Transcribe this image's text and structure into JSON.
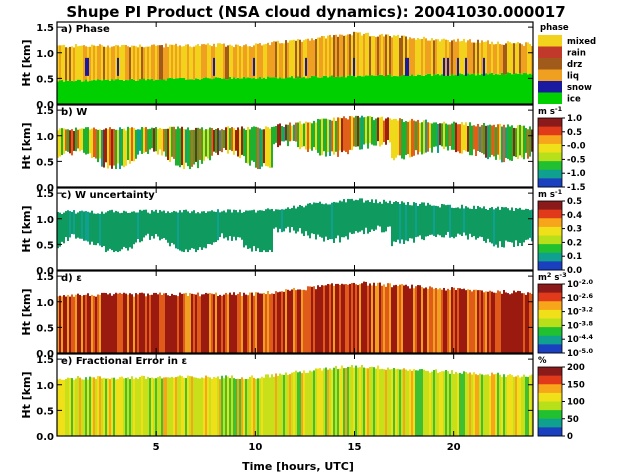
{
  "title": "Shupe PI Product (NSA cloud dynamics): 20041030.000017",
  "chart_data": [
    {
      "type": "heatmap",
      "panel_label": "a) Phase",
      "ylabel": "Ht [km]",
      "ylim": [
        0.0,
        1.6
      ],
      "yticks": [
        "1.5",
        "1.0",
        "0.5",
        "0.0"
      ],
      "xlim": [
        0,
        24
      ],
      "colorbar": {
        "title": "phase",
        "labels": [
          "mixed",
          "rain",
          "drz",
          "liq",
          "snow",
          "ice"
        ],
        "colors": [
          "#f2d21a",
          "#c0392b",
          "#a05a1a",
          "#f0a020",
          "#1a1aa0",
          "#00d000"
        ]
      }
    },
    {
      "type": "heatmap",
      "panel_label": "b) W",
      "ylabel": "Ht [km]",
      "ylim": [
        0.0,
        1.6
      ],
      "yticks": [
        "1.5",
        "1.0",
        "0.5",
        "0.0"
      ],
      "xlim": [
        0,
        24
      ],
      "colorbar": {
        "unit": "m s",
        "unit_sup": "-1",
        "labels": [
          "1.0",
          "0.5",
          "-0.0",
          "-0.5",
          "-1.0",
          "-1.5"
        ],
        "colors": [
          "#8b1a1a",
          "#e03a1a",
          "#f7a51a",
          "#f0e01a",
          "#b8e01a",
          "#20c030",
          "#10a090",
          "#1a40c0"
        ]
      }
    },
    {
      "type": "heatmap",
      "panel_label": "c) W uncertainty",
      "ylabel": "Ht [km]",
      "ylim": [
        0.0,
        1.6
      ],
      "yticks": [
        "1.5",
        "1.0",
        "0.5",
        "0.0"
      ],
      "xlim": [
        0,
        24
      ],
      "colorbar": {
        "unit": "m s",
        "unit_sup": "-1",
        "labels": [
          "0.5",
          "0.4",
          "0.3",
          "0.2",
          "0.1",
          "0.0"
        ],
        "colors": [
          "#8b1a1a",
          "#e03a1a",
          "#f7a51a",
          "#f0e01a",
          "#b8e01a",
          "#20c030",
          "#10a090",
          "#1a40c0"
        ]
      }
    },
    {
      "type": "heatmap",
      "panel_label": "d) ε",
      "ylabel": "Ht [km]",
      "ylim": [
        0.0,
        1.6
      ],
      "yticks": [
        "1.5",
        "1.0",
        "0.5",
        "0.0"
      ],
      "xlim": [
        0,
        24
      ],
      "colorbar": {
        "unit": "m",
        "unit_sup": "2",
        "unit2": " s",
        "unit2_sup": "-3",
        "labels": [
          "10",
          "10",
          "10",
          "10",
          "10",
          "10"
        ],
        "label_sups": [
          "-2.0",
          "-2.6",
          "-3.2",
          "-3.8",
          "-4.4",
          "-5.0"
        ],
        "colors": [
          "#8b1a1a",
          "#e03a1a",
          "#f7a51a",
          "#f0e01a",
          "#b8e01a",
          "#20c030",
          "#10a090",
          "#1a40c0"
        ]
      }
    },
    {
      "type": "heatmap",
      "panel_label": "e) Fractional Error in ε",
      "ylabel": "Ht [km]",
      "ylim": [
        0.0,
        1.6
      ],
      "yticks": [
        "1.5",
        "1.0",
        "0.5",
        "0.0"
      ],
      "xlim": [
        0,
        24
      ],
      "xlabel": "Time [hours, UTC]",
      "xticks": [
        "5",
        "10",
        "15",
        "20"
      ],
      "colorbar": {
        "unit": "%",
        "labels": [
          "200",
          "150",
          "100",
          "50",
          "0"
        ],
        "colors": [
          "#8b1a1a",
          "#e03a1a",
          "#f7a51a",
          "#f0e01a",
          "#b8e01a",
          "#20c030",
          "#10a090",
          "#1a40c0"
        ]
      }
    }
  ]
}
